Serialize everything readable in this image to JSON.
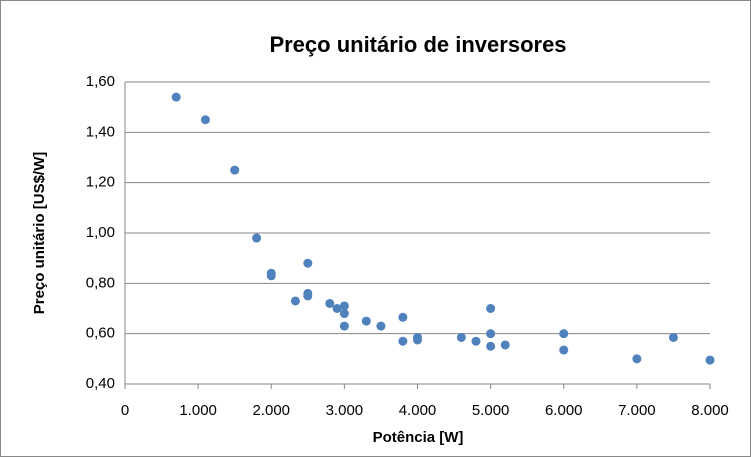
{
  "chart_data": {
    "type": "scatter",
    "title": "Preço unitário de inversores",
    "x_label": "Potência [W]",
    "y_label": "Preço unitário [US$/W]",
    "color": "#4f81bd",
    "grid": true,
    "x": [
      700,
      1100,
      1500,
      1800,
      2000,
      2000,
      2330,
      2500,
      2500,
      2500,
      2800,
      2900,
      3000,
      3000,
      3000,
      3300,
      3500,
      3800,
      3800,
      4000,
      4000,
      4600,
      4800,
      5000,
      5000,
      5000,
      5200,
      6000,
      6000,
      7000,
      7500,
      8000
    ],
    "values": [
      1.54,
      1.45,
      1.25,
      0.98,
      0.84,
      0.83,
      0.73,
      0.88,
      0.76,
      0.75,
      0.72,
      0.7,
      0.71,
      0.68,
      0.63,
      0.65,
      0.63,
      0.665,
      0.57,
      0.585,
      0.575,
      0.585,
      0.57,
      0.7,
      0.6,
      0.55,
      0.555,
      0.6,
      0.535,
      0.5,
      0.585,
      0.495
    ],
    "xlim": [
      0,
      8000
    ],
    "xticks": [
      0,
      {
        "value": 1000,
        "label": "1.000"
      },
      {
        "value": 2000,
        "label": "2.000"
      },
      {
        "value": 3000,
        "label": "3.000"
      },
      {
        "value": 4000,
        "label": "4.000"
      },
      {
        "value": 5000,
        "label": "5.000"
      },
      {
        "value": 6000,
        "label": "6.000"
      },
      {
        "value": 7000,
        "label": "7.000"
      },
      {
        "value": 8000,
        "label": "8.000"
      }
    ],
    "ylim": [
      0.4,
      1.6
    ],
    "yticks": [
      {
        "value": 0.4,
        "label": "0,40"
      },
      {
        "value": 0.6,
        "label": "0,60"
      },
      {
        "value": 0.8,
        "label": "0,80"
      },
      {
        "value": 1.0,
        "label": "1,00"
      },
      {
        "value": 1.2,
        "label": "1,20"
      },
      {
        "value": 1.4,
        "label": "1,40"
      },
      {
        "value": 1.6,
        "label": "1,60"
      }
    ]
  }
}
